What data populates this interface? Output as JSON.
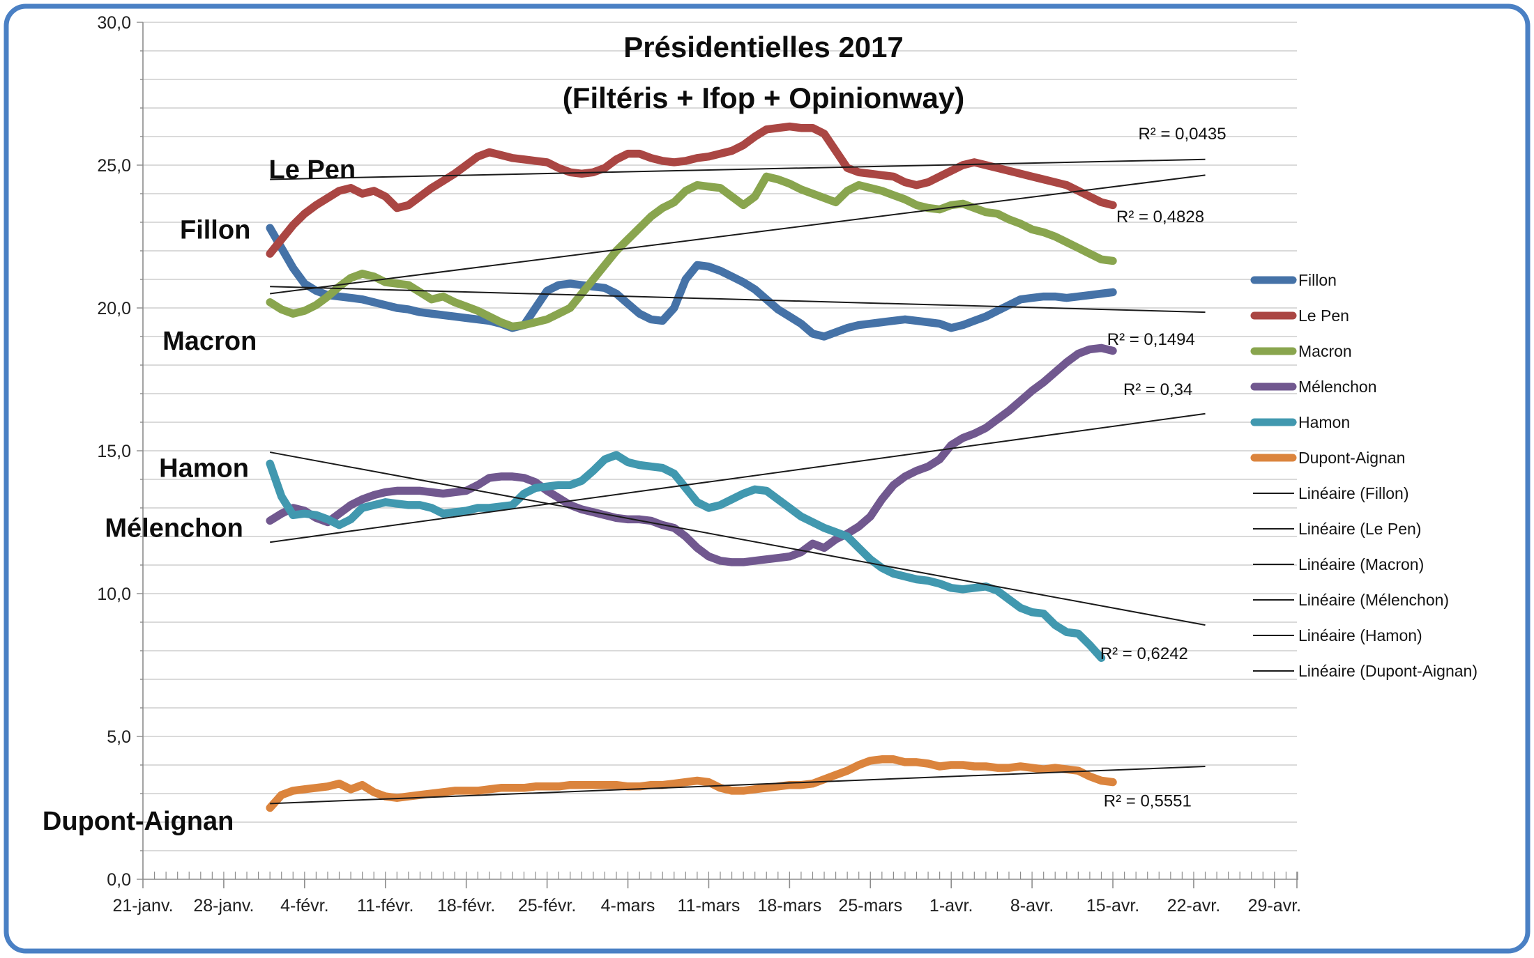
{
  "title": {
    "line1": "Présidentielles 2017",
    "line2": "(Filtéris + Ifop + Opinionway)"
  },
  "border_color": "#4a80c4",
  "chart_data": {
    "type": "line",
    "title": "Présidentielles 2017 (Filtéris + Ifop + Opinionway)",
    "grid": true,
    "legend_position": "right",
    "x_axis": {
      "tick_labels": [
        "21-janv.",
        "28-janv.",
        "4-févr.",
        "11-févr.",
        "18-févr.",
        "25-févr.",
        "4-mars",
        "11-mars",
        "18-mars",
        "25-mars",
        "1-avr.",
        "8-avr.",
        "15-avr.",
        "22-avr.",
        "29-avr."
      ],
      "days_per_tick": 7,
      "axis_start_day": 0,
      "axis_end_day": 100
    },
    "y_axis": {
      "tick_labels": [
        "0,0",
        "5,0",
        "10,0",
        "15,0",
        "20,0",
        "25,0",
        "30,0"
      ],
      "min": 0,
      "max": 30,
      "major_step": 5,
      "minor_step": 1
    },
    "series": [
      {
        "name": "Fillon",
        "color": "#4572A7",
        "start_day": 11,
        "values": [
          22.8,
          22.1,
          21.4,
          20.85,
          20.6,
          20.45,
          20.4,
          20.35,
          20.3,
          20.2,
          20.1,
          20.0,
          19.95,
          19.85,
          19.8,
          19.75,
          19.7,
          19.65,
          19.6,
          19.55,
          19.45,
          19.3,
          19.4,
          20.0,
          20.6,
          20.8,
          20.85,
          20.8,
          20.75,
          20.7,
          20.5,
          20.15,
          19.8,
          19.6,
          19.55,
          20.0,
          21.0,
          21.5,
          21.45,
          21.3,
          21.1,
          20.9,
          20.65,
          20.3,
          19.95,
          19.7,
          19.45,
          19.1,
          19.0,
          19.15,
          19.3,
          19.4,
          19.45,
          19.5,
          19.55,
          19.6,
          19.55,
          19.5,
          19.45,
          19.3,
          19.4,
          19.55,
          19.7,
          19.9,
          20.1,
          20.3,
          20.35,
          20.4,
          20.4,
          20.35,
          20.4,
          20.45,
          20.5,
          20.55
        ]
      },
      {
        "name": "Le Pen",
        "color": "#AA4643",
        "start_day": 11,
        "values": [
          21.9,
          22.4,
          22.9,
          23.3,
          23.6,
          23.85,
          24.1,
          24.2,
          24.0,
          24.1,
          23.9,
          23.5,
          23.6,
          23.9,
          24.2,
          24.45,
          24.7,
          25.0,
          25.3,
          25.45,
          25.35,
          25.25,
          25.2,
          25.15,
          25.1,
          24.9,
          24.75,
          24.7,
          24.75,
          24.9,
          25.2,
          25.4,
          25.4,
          25.25,
          25.15,
          25.1,
          25.15,
          25.25,
          25.3,
          25.4,
          25.5,
          25.7,
          26.0,
          26.25,
          26.3,
          26.35,
          26.3,
          26.3,
          26.1,
          25.5,
          24.9,
          24.75,
          24.7,
          24.65,
          24.6,
          24.4,
          24.3,
          24.4,
          24.6,
          24.8,
          25.0,
          25.1,
          25.0,
          24.9,
          24.8,
          24.7,
          24.6,
          24.5,
          24.4,
          24.3,
          24.1,
          23.9,
          23.7,
          23.6
        ]
      },
      {
        "name": "Macron",
        "color": "#89A54E",
        "start_day": 11,
        "values": [
          20.2,
          19.95,
          19.8,
          19.9,
          20.1,
          20.4,
          20.75,
          21.05,
          21.2,
          21.1,
          20.9,
          20.85,
          20.8,
          20.55,
          20.3,
          20.4,
          20.2,
          20.05,
          19.9,
          19.7,
          19.5,
          19.35,
          19.4,
          19.5,
          19.6,
          19.8,
          20.0,
          20.5,
          21.0,
          21.5,
          22.0,
          22.4,
          22.8,
          23.2,
          23.5,
          23.7,
          24.1,
          24.3,
          24.25,
          24.2,
          23.9,
          23.6,
          23.9,
          24.6,
          24.5,
          24.35,
          24.15,
          24.0,
          23.85,
          23.7,
          24.1,
          24.3,
          24.2,
          24.1,
          23.95,
          23.8,
          23.6,
          23.5,
          23.45,
          23.6,
          23.65,
          23.5,
          23.35,
          23.3,
          23.1,
          22.95,
          22.75,
          22.65,
          22.5,
          22.3,
          22.1,
          21.9,
          21.7,
          21.65
        ]
      },
      {
        "name": "Mélenchon",
        "color": "#71588F",
        "start_day": 11,
        "values": [
          12.55,
          12.8,
          13.0,
          12.9,
          12.65,
          12.5,
          12.8,
          13.1,
          13.3,
          13.45,
          13.55,
          13.6,
          13.6,
          13.6,
          13.55,
          13.5,
          13.55,
          13.6,
          13.8,
          14.05,
          14.1,
          14.1,
          14.05,
          13.9,
          13.6,
          13.35,
          13.1,
          12.95,
          12.85,
          12.75,
          12.65,
          12.6,
          12.6,
          12.55,
          12.4,
          12.3,
          12.0,
          11.6,
          11.3,
          11.15,
          11.1,
          11.1,
          11.15,
          11.2,
          11.25,
          11.3,
          11.45,
          11.75,
          11.6,
          11.9,
          12.1,
          12.35,
          12.7,
          13.3,
          13.8,
          14.1,
          14.3,
          14.45,
          14.7,
          15.2,
          15.45,
          15.6,
          15.8,
          16.1,
          16.4,
          16.75,
          17.1,
          17.4,
          17.75,
          18.1,
          18.4,
          18.55,
          18.6,
          18.5
        ]
      },
      {
        "name": "Hamon",
        "color": "#4198AF",
        "start_day": 11,
        "values": [
          14.55,
          13.4,
          12.75,
          12.8,
          12.75,
          12.6,
          12.4,
          12.6,
          13.0,
          13.1,
          13.2,
          13.15,
          13.1,
          13.1,
          13.0,
          12.8,
          12.85,
          12.9,
          13.0,
          13.0,
          13.05,
          13.1,
          13.5,
          13.7,
          13.75,
          13.8,
          13.8,
          13.95,
          14.3,
          14.7,
          14.85,
          14.6,
          14.5,
          14.45,
          14.4,
          14.2,
          13.7,
          13.2,
          13.0,
          13.1,
          13.3,
          13.5,
          13.65,
          13.6,
          13.3,
          13.0,
          12.7,
          12.5,
          12.3,
          12.15,
          12.0,
          11.6,
          11.2,
          10.9,
          10.7,
          10.6,
          10.5,
          10.45,
          10.35,
          10.2,
          10.15,
          10.2,
          10.25,
          10.1,
          9.8,
          9.5,
          9.35,
          9.3,
          8.9,
          8.65,
          8.6,
          8.2,
          7.75
        ]
      },
      {
        "name": "Dupont-Aignan",
        "color": "#DB843D",
        "start_day": 11,
        "values": [
          2.5,
          2.95,
          3.1,
          3.15,
          3.2,
          3.25,
          3.35,
          3.15,
          3.3,
          3.05,
          2.9,
          2.85,
          2.9,
          2.95,
          3.0,
          3.05,
          3.1,
          3.1,
          3.1,
          3.15,
          3.2,
          3.2,
          3.2,
          3.25,
          3.25,
          3.25,
          3.3,
          3.3,
          3.3,
          3.3,
          3.3,
          3.25,
          3.25,
          3.3,
          3.3,
          3.35,
          3.4,
          3.45,
          3.4,
          3.2,
          3.1,
          3.1,
          3.15,
          3.2,
          3.25,
          3.3,
          3.3,
          3.35,
          3.5,
          3.65,
          3.8,
          4.0,
          4.15,
          4.2,
          4.2,
          4.1,
          4.1,
          4.05,
          3.95,
          4.0,
          4.0,
          3.95,
          3.95,
          3.9,
          3.9,
          3.95,
          3.9,
          3.85,
          3.9,
          3.85,
          3.8,
          3.6,
          3.45,
          3.4
        ]
      }
    ],
    "trendlines": [
      {
        "name": "Fillon",
        "start_day": 11,
        "end_day": 92,
        "start_value": 20.75,
        "end_value": 19.85,
        "r2": "R² = 0,1494",
        "r2_day": 83.5,
        "r2_value": 18.9
      },
      {
        "name": "Le Pen",
        "start_day": 11,
        "end_day": 92,
        "start_value": 24.5,
        "end_value": 25.2,
        "r2": "R² = 0,0435",
        "r2_day": 86.2,
        "r2_value": 26.1
      },
      {
        "name": "Macron",
        "start_day": 11,
        "end_day": 92,
        "start_value": 20.5,
        "end_value": 24.65,
        "r2": "R² = 0,4828",
        "r2_day": 84.3,
        "r2_value": 23.2
      },
      {
        "name": "Mélenchon",
        "start_day": 11,
        "end_day": 92,
        "start_value": 11.8,
        "end_value": 16.3,
        "r2": "R² = 0,34",
        "r2_day": 84.9,
        "r2_value": 17.15
      },
      {
        "name": "Hamon",
        "start_day": 11,
        "end_day": 92,
        "start_value": 14.95,
        "end_value": 8.9,
        "r2": "R² = 0,6242",
        "r2_day": 82.9,
        "r2_value": 7.9
      },
      {
        "name": "Dupont-Aignan",
        "start_day": 11,
        "end_day": 92,
        "start_value": 2.65,
        "end_value": 3.95,
        "r2": "R² = 0,5551",
        "r2_day": 83.2,
        "r2_value": 2.75
      }
    ],
    "series_labels": [
      {
        "text": "Le Pen",
        "day": 10.9,
        "value": 24.85
      },
      {
        "text": "Fillon",
        "day": 3.2,
        "value": 22.75
      },
      {
        "text": "Macron",
        "day": 1.7,
        "value": 18.85
      },
      {
        "text": "Hamon",
        "day": 1.4,
        "value": 14.4
      },
      {
        "text": "Mélenchon",
        "day": -3.3,
        "value": 12.3
      },
      {
        "text": "Dupont-Aignan",
        "day": -8.7,
        "value": 2.05
      }
    ],
    "legend": {
      "items": [
        {
          "label": "Fillon",
          "type": "series",
          "color": "#4572A7"
        },
        {
          "label": "Le Pen",
          "type": "series",
          "color": "#AA4643"
        },
        {
          "label": "Macron",
          "type": "series",
          "color": "#89A54E"
        },
        {
          "label": "Mélenchon",
          "type": "series",
          "color": "#71588F"
        },
        {
          "label": "Hamon",
          "type": "series",
          "color": "#4198AF"
        },
        {
          "label": "Dupont-Aignan",
          "type": "series",
          "color": "#DB843D"
        },
        {
          "label": "Linéaire (Fillon)",
          "type": "trend",
          "color": "#1a1a1a"
        },
        {
          "label": "Linéaire (Le Pen)",
          "type": "trend",
          "color": "#1a1a1a"
        },
        {
          "label": "Linéaire (Macron)",
          "type": "trend",
          "color": "#1a1a1a"
        },
        {
          "label": "Linéaire (Mélenchon)",
          "type": "trend",
          "color": "#1a1a1a"
        },
        {
          "label": "Linéaire (Hamon)",
          "type": "trend",
          "color": "#1a1a1a"
        },
        {
          "label": "Linéaire (Dupont-Aignan)",
          "type": "trend",
          "color": "#1a1a1a"
        }
      ]
    }
  }
}
